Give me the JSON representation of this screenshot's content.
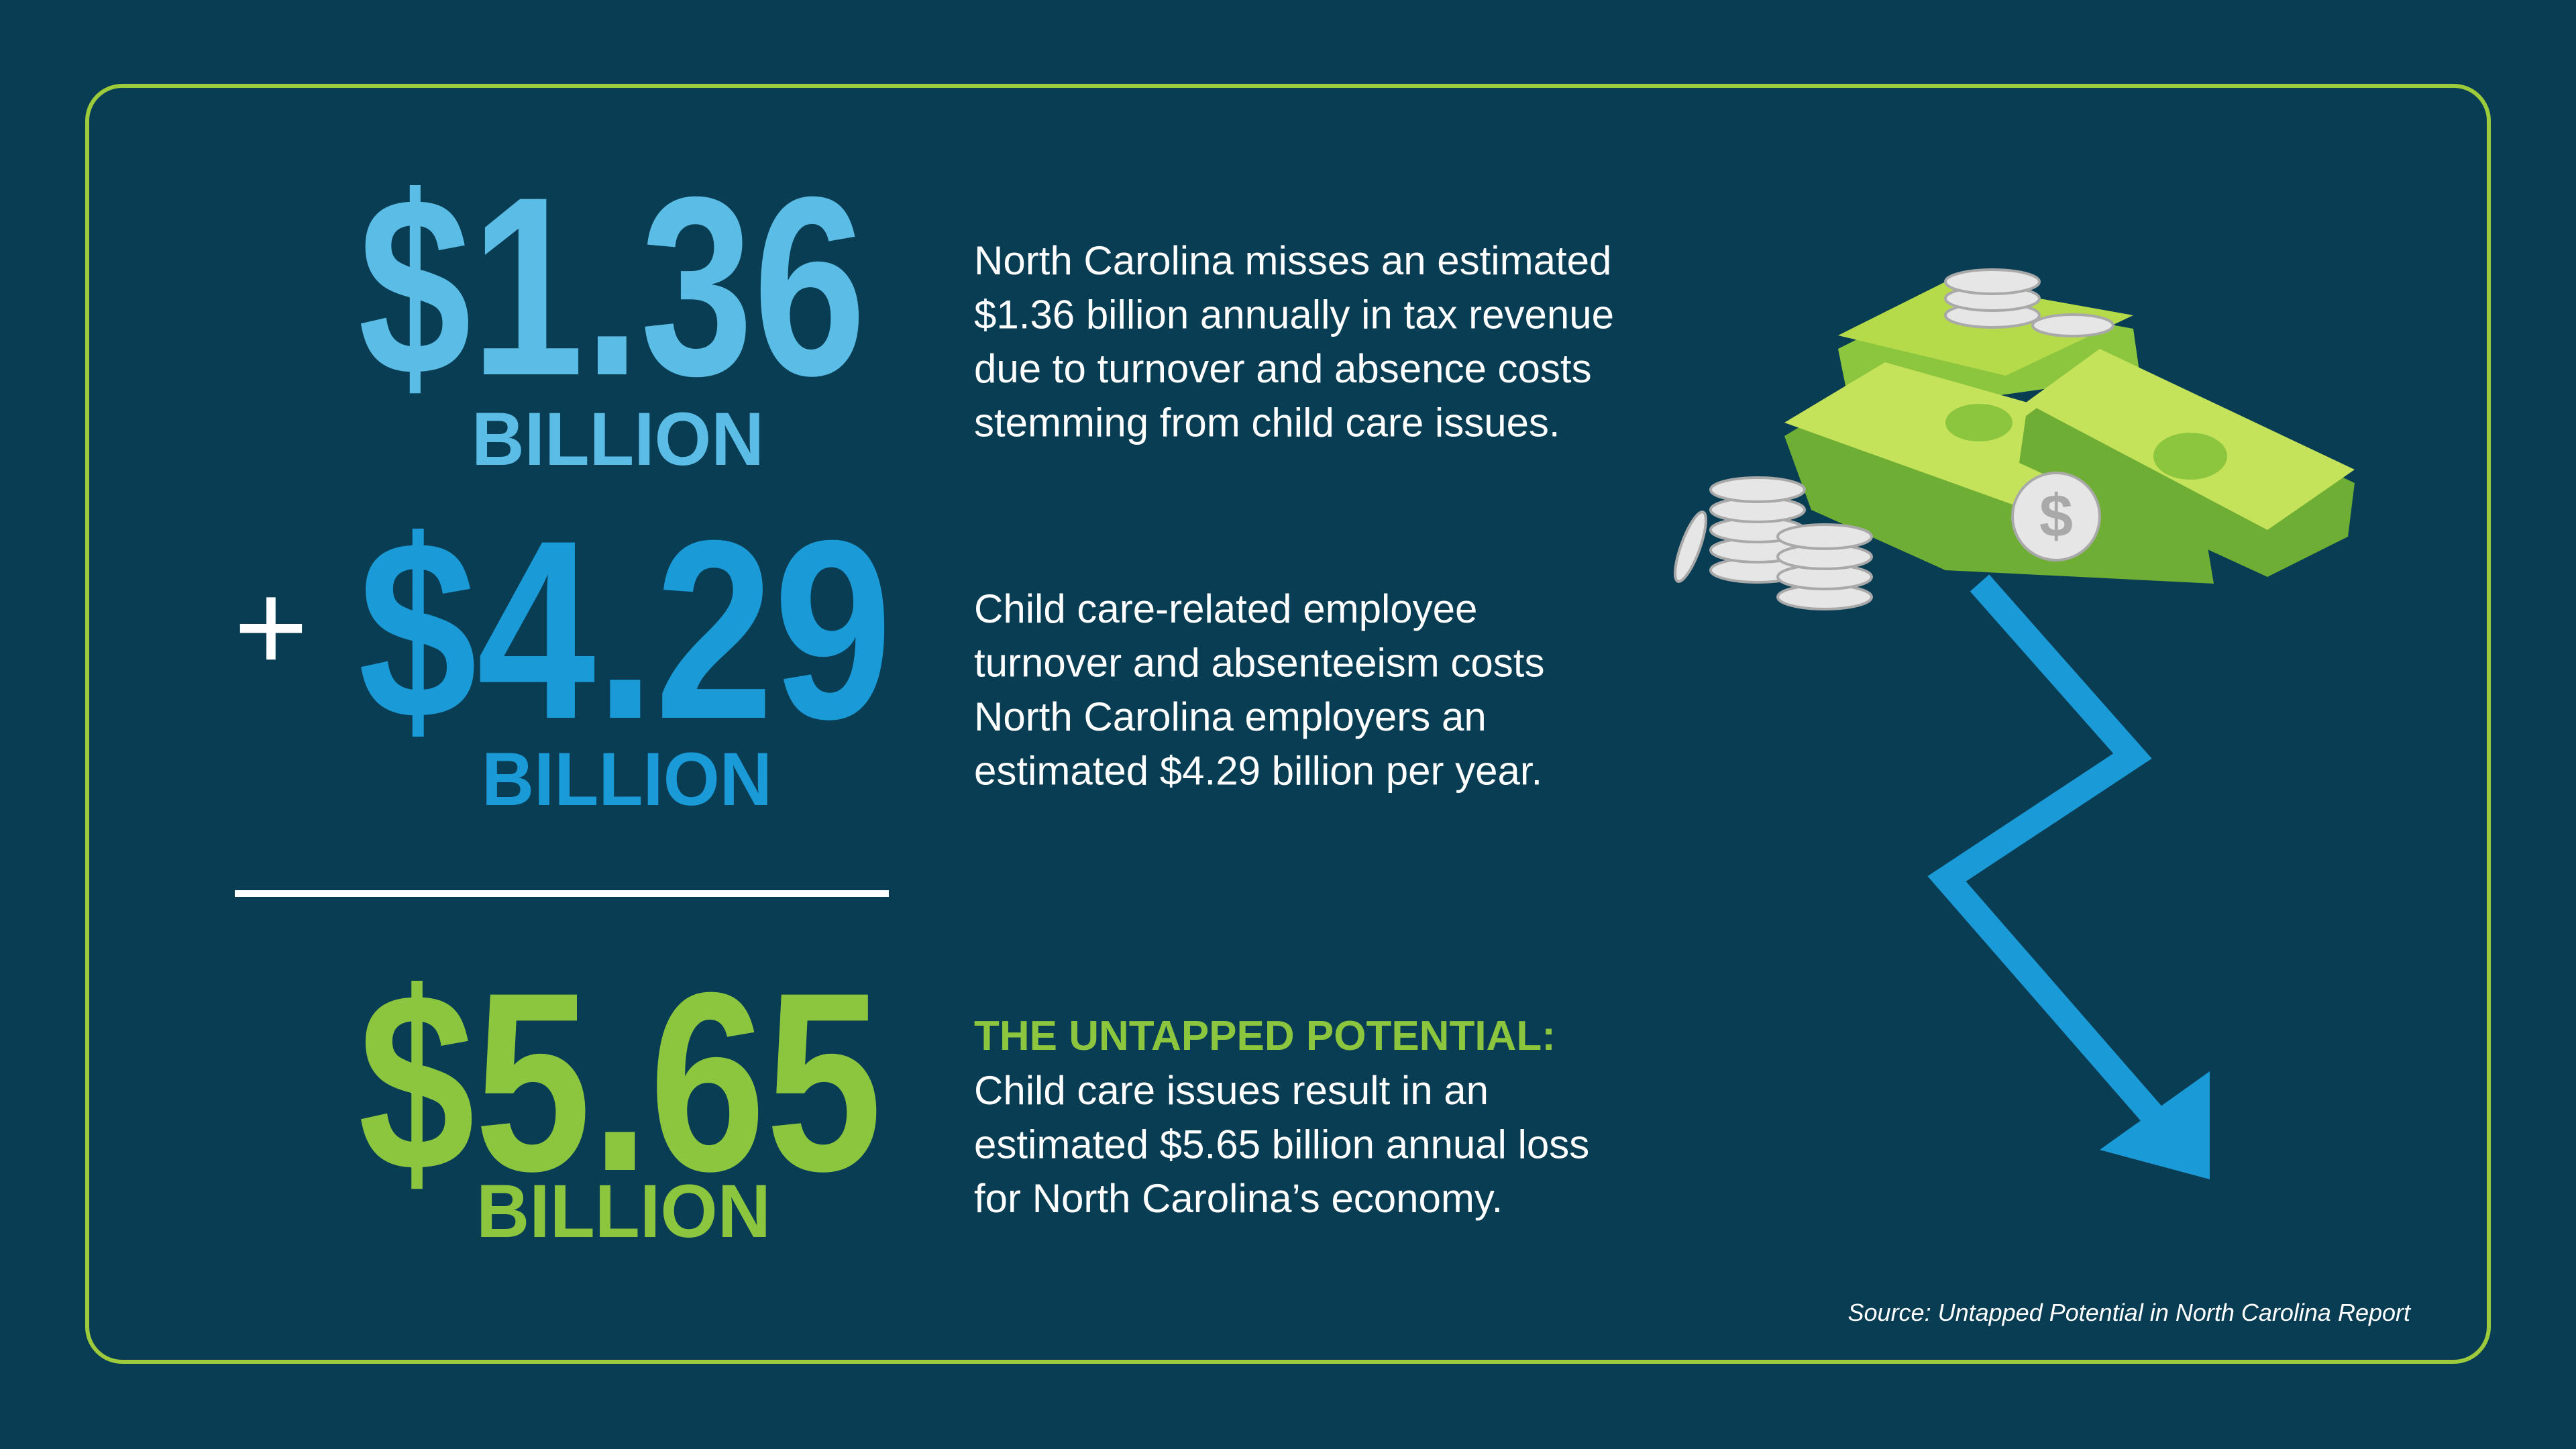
{
  "stats": [
    {
      "amount": "$1.36",
      "unit": "BILLION",
      "description": [
        "North Carolina misses an estimated",
        "$1.36 billion annually in tax revenue",
        "due to turnover and absence costs",
        "stemming from child care issues."
      ]
    },
    {
      "operator": "+",
      "amount": "$4.29",
      "unit": "BILLION",
      "description": [
        "Child care-related employee",
        "turnover and absenteeism costs",
        "North Carolina employers an",
        "estimated $4.29 billion per year."
      ]
    }
  ],
  "total": {
    "amount": "$5.65",
    "unit": "BILLION",
    "heading": "THE UNTAPPED POTENTIAL:",
    "description": [
      "Child care issues result in an",
      "estimated $5.65 billion annual loss",
      "for North Carolina’s economy."
    ]
  },
  "source": "Source: Untapped Potential in North Carolina Report"
}
